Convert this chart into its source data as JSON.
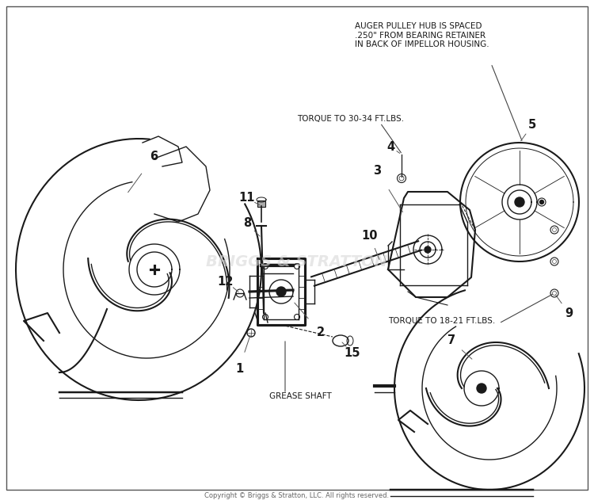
{
  "bg_color": "#ffffff",
  "line_color": "#1a1a1a",
  "gray_color": "#888888",
  "watermark_color": "#d8d8d8",
  "watermark_text": "BRIGGS & STRATTON",
  "copyright_text": "Copyright © Briggs & Stratton, LLC. All rights reserved.",
  "annotations": {
    "auger_note": "AUGER PULLEY HUB IS SPACED\n.250\" FROM BEARING RETAINER\nIN BACK OF IMPELLOR HOUSING.",
    "torque_high": "TORQUE TO 30-34 FT.LBS.",
    "torque_low": "TORQUE TO 18-21 FT.LBS.",
    "grease_shaft": "GREASE SHAFT"
  },
  "fig_width": 7.5,
  "fig_height": 6.36,
  "dpi": 100
}
